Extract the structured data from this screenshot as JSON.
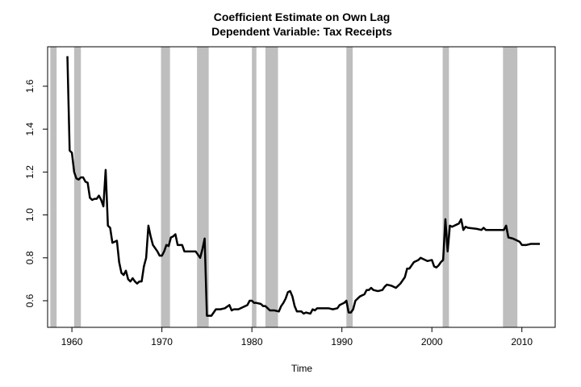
{
  "chart_data": {
    "type": "line",
    "title": "Coefficient Estimate on Own Lag",
    "subtitle": "Dependent Variable: Tax Receipts",
    "x_label": "Time",
    "x": [
      1959.5,
      1959.75,
      1960.0,
      1960.25,
      1960.5,
      1960.75,
      1961.0,
      1961.25,
      1961.5,
      1961.75,
      1962.0,
      1962.25,
      1962.5,
      1962.75,
      1963.0,
      1963.25,
      1963.5,
      1963.75,
      1964.0,
      1964.25,
      1964.5,
      1964.75,
      1965.0,
      1965.25,
      1965.5,
      1965.75,
      1966.0,
      1966.25,
      1966.5,
      1966.75,
      1967.0,
      1967.25,
      1967.5,
      1967.75,
      1968.0,
      1968.25,
      1968.5,
      1968.75,
      1969.0,
      1969.25,
      1969.5,
      1969.75,
      1970.0,
      1970.25,
      1970.5,
      1970.75,
      1971.0,
      1971.25,
      1971.5,
      1971.75,
      1972.0,
      1972.25,
      1972.5,
      1972.75,
      1973.75,
      1974.0,
      1974.25,
      1974.5,
      1974.75,
      1975.0,
      1975.25,
      1975.5,
      1975.75,
      1976.0,
      1976.5,
      1977.0,
      1977.5,
      1977.75,
      1978.0,
      1978.5,
      1979.0,
      1979.5,
      1979.75,
      1980.0,
      1980.25,
      1980.5,
      1981.0,
      1981.25,
      1981.5,
      1982.0,
      1982.5,
      1983.0,
      1983.25,
      1983.5,
      1983.75,
      1984.0,
      1984.25,
      1984.5,
      1984.75,
      1985.0,
      1985.5,
      1985.75,
      1986.0,
      1986.5,
      1986.75,
      1987.0,
      1987.25,
      1988.0,
      1988.5,
      1989.0,
      1989.5,
      1989.75,
      1990.0,
      1990.25,
      1990.5,
      1990.75,
      1991.0,
      1991.25,
      1991.5,
      1992.0,
      1992.5,
      1992.75,
      1993.0,
      1993.25,
      1993.5,
      1994.0,
      1994.5,
      1994.75,
      1995.0,
      1995.5,
      1996.0,
      1996.5,
      1997.0,
      1997.25,
      1997.5,
      1998.0,
      1998.5,
      1998.75,
      1999.0,
      1999.5,
      2000.0,
      2000.25,
      2000.5,
      2000.75,
      2001.0,
      2001.25,
      2001.5,
      2001.75,
      2002.0,
      2002.25,
      2002.5,
      2002.75,
      2003.0,
      2003.25,
      2003.5,
      2003.75,
      2004.0,
      2005.0,
      2005.5,
      2005.75,
      2006.0,
      2007.0,
      2008.0,
      2008.25,
      2008.5,
      2009.0,
      2009.5,
      2009.75,
      2010.0,
      2010.5,
      2011.0,
      2011.5,
      2012.0
    ],
    "series": [
      {
        "color": "#000000",
        "values": [
          1.74,
          1.3,
          1.29,
          1.2,
          1.17,
          1.165,
          1.175,
          1.175,
          1.155,
          1.15,
          1.08,
          1.07,
          1.075,
          1.075,
          1.09,
          1.07,
          1.04,
          1.21,
          0.95,
          0.94,
          0.87,
          0.875,
          0.88,
          0.78,
          0.73,
          0.72,
          0.74,
          0.7,
          0.69,
          0.705,
          0.69,
          0.68,
          0.69,
          0.69,
          0.76,
          0.8,
          0.95,
          0.9,
          0.86,
          0.845,
          0.83,
          0.81,
          0.81,
          0.83,
          0.86,
          0.855,
          0.895,
          0.9,
          0.91,
          0.86,
          0.86,
          0.86,
          0.83,
          0.83,
          0.83,
          0.815,
          0.8,
          0.84,
          0.89,
          0.53,
          0.53,
          0.53,
          0.545,
          0.56,
          0.56,
          0.565,
          0.58,
          0.555,
          0.56,
          0.56,
          0.57,
          0.58,
          0.6,
          0.6,
          0.59,
          0.59,
          0.585,
          0.575,
          0.575,
          0.555,
          0.555,
          0.55,
          0.575,
          0.59,
          0.61,
          0.64,
          0.645,
          0.62,
          0.575,
          0.55,
          0.55,
          0.54,
          0.545,
          0.54,
          0.56,
          0.555,
          0.565,
          0.565,
          0.565,
          0.56,
          0.565,
          0.58,
          0.585,
          0.59,
          0.6,
          0.545,
          0.545,
          0.56,
          0.6,
          0.62,
          0.63,
          0.65,
          0.65,
          0.66,
          0.65,
          0.645,
          0.65,
          0.665,
          0.675,
          0.67,
          0.66,
          0.68,
          0.71,
          0.75,
          0.75,
          0.78,
          0.79,
          0.8,
          0.795,
          0.785,
          0.79,
          0.76,
          0.755,
          0.765,
          0.78,
          0.79,
          0.98,
          0.83,
          0.95,
          0.945,
          0.95,
          0.955,
          0.96,
          0.98,
          0.93,
          0.945,
          0.94,
          0.935,
          0.93,
          0.94,
          0.93,
          0.93,
          0.93,
          0.95,
          0.895,
          0.89,
          0.88,
          0.875,
          0.86,
          0.86,
          0.865,
          0.865,
          0.865
        ]
      }
    ],
    "shaded_periods": [
      [
        1957.6,
        1958.3
      ],
      [
        1960.25,
        1961.0
      ],
      [
        1969.9,
        1970.9
      ],
      [
        1973.9,
        1975.2
      ],
      [
        1980.0,
        1980.5
      ],
      [
        1981.5,
        1982.9
      ],
      [
        1990.5,
        1991.2
      ],
      [
        2001.2,
        2001.9
      ],
      [
        2007.9,
        2009.5
      ]
    ],
    "shade_color": "#bebebe",
    "xlim": [
      1957.3,
      2013.7
    ],
    "ylim": [
      0.476,
      1.784
    ],
    "xticks": [
      1960,
      1970,
      1980,
      1990,
      2000,
      2010
    ],
    "yticks": [
      {
        "value": 0.6,
        "label": "0.6"
      },
      {
        "value": 0.8,
        "label": "0.8"
      },
      {
        "value": 1.0,
        "label": "1.0"
      },
      {
        "value": 1.2,
        "label": "1.2"
      },
      {
        "value": 1.4,
        "label": "1.4"
      },
      {
        "value": 1.6,
        "label": "1.6"
      }
    ]
  }
}
